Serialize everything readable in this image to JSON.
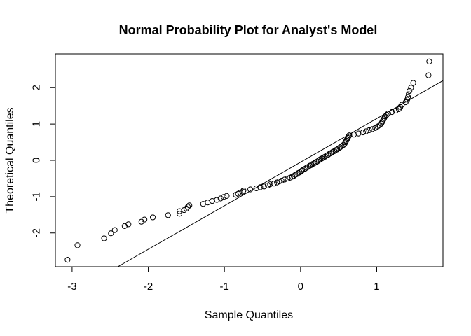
{
  "chart_data": {
    "type": "scatter",
    "title": "Normal Probability Plot for Analyst's Model",
    "xlabel": "Sample Quantiles",
    "ylabel": "Theoretical Quantiles",
    "xlim": [
      -3.22,
      1.87
    ],
    "ylim": [
      -2.93,
      2.93
    ],
    "xticks": [
      -3,
      -2,
      -1,
      0,
      1
    ],
    "xtick_labels": [
      "-3",
      "-2",
      "-1",
      "0",
      "1"
    ],
    "yticks": [
      -2,
      -1,
      0,
      1,
      2
    ],
    "ytick_labels": [
      "-2",
      "-1",
      "0",
      "1",
      "2"
    ],
    "grid": false,
    "marker": "open-circle",
    "reference_line": {
      "slope": 1.2,
      "intercept": -0.05
    },
    "points": [
      [
        -3.06,
        -2.74
      ],
      [
        -2.93,
        -2.34
      ],
      [
        -2.58,
        -2.15
      ],
      [
        -2.49,
        -2.01
      ],
      [
        -2.44,
        -1.92
      ],
      [
        -2.31,
        -1.81
      ],
      [
        -2.26,
        -1.76
      ],
      [
        -2.09,
        -1.69
      ],
      [
        -2.05,
        -1.63
      ],
      [
        -1.94,
        -1.57
      ],
      [
        -1.74,
        -1.51
      ],
      [
        -1.59,
        -1.47
      ],
      [
        -1.59,
        -1.4
      ],
      [
        -1.53,
        -1.37
      ],
      [
        -1.5,
        -1.33
      ],
      [
        -1.48,
        -1.28
      ],
      [
        -1.46,
        -1.24
      ],
      [
        -1.28,
        -1.2
      ],
      [
        -1.22,
        -1.16
      ],
      [
        -1.16,
        -1.12
      ],
      [
        -1.1,
        -1.09
      ],
      [
        -1.05,
        -1.05
      ],
      [
        -1.01,
        -1.01
      ],
      [
        -0.97,
        -0.98
      ],
      [
        -0.85,
        -0.95
      ],
      [
        -0.82,
        -0.92
      ],
      [
        -0.79,
        -0.89
      ],
      [
        -0.76,
        -0.86
      ],
      [
        -0.75,
        -0.83
      ],
      [
        -0.66,
        -0.8
      ],
      [
        -0.58,
        -0.77
      ],
      [
        -0.53,
        -0.74
      ],
      [
        -0.48,
        -0.72
      ],
      [
        -0.43,
        -0.69
      ],
      [
        -0.4,
        -0.66
      ],
      [
        -0.35,
        -0.64
      ],
      [
        -0.31,
        -0.61
      ],
      [
        -0.28,
        -0.58
      ],
      [
        -0.25,
        -0.56
      ],
      [
        -0.21,
        -0.53
      ],
      [
        -0.17,
        -0.5
      ],
      [
        -0.14,
        -0.48
      ],
      [
        -0.11,
        -0.45
      ],
      [
        -0.09,
        -0.43
      ],
      [
        -0.07,
        -0.4
      ],
      [
        -0.05,
        -0.38
      ],
      [
        -0.03,
        -0.35
      ],
      [
        -0.01,
        -0.33
      ],
      [
        0.01,
        -0.3
      ],
      [
        0.02,
        -0.28
      ],
      [
        0.04,
        -0.25
      ],
      [
        0.06,
        -0.23
      ],
      [
        0.08,
        -0.2
      ],
      [
        0.1,
        -0.18
      ],
      [
        0.12,
        -0.15
      ],
      [
        0.14,
        -0.13
      ],
      [
        0.16,
        -0.1
      ],
      [
        0.18,
        -0.08
      ],
      [
        0.2,
        -0.05
      ],
      [
        0.22,
        -0.03
      ],
      [
        0.24,
        0.0
      ],
      [
        0.26,
        0.03
      ],
      [
        0.28,
        0.05
      ],
      [
        0.3,
        0.08
      ],
      [
        0.32,
        0.1
      ],
      [
        0.34,
        0.13
      ],
      [
        0.36,
        0.15
      ],
      [
        0.38,
        0.18
      ],
      [
        0.4,
        0.2
      ],
      [
        0.42,
        0.23
      ],
      [
        0.44,
        0.25
      ],
      [
        0.46,
        0.28
      ],
      [
        0.48,
        0.3
      ],
      [
        0.5,
        0.33
      ],
      [
        0.52,
        0.36
      ],
      [
        0.54,
        0.39
      ],
      [
        0.56,
        0.42
      ],
      [
        0.58,
        0.46
      ],
      [
        0.59,
        0.5
      ],
      [
        0.6,
        0.54
      ],
      [
        0.61,
        0.58
      ],
      [
        0.62,
        0.62
      ],
      [
        0.63,
        0.66
      ],
      [
        0.64,
        0.69
      ],
      [
        0.7,
        0.71
      ],
      [
        0.76,
        0.74
      ],
      [
        0.82,
        0.77
      ],
      [
        0.86,
        0.8
      ],
      [
        0.9,
        0.83
      ],
      [
        0.94,
        0.86
      ],
      [
        0.98,
        0.89
      ],
      [
        1.01,
        0.93
      ],
      [
        1.04,
        0.97
      ],
      [
        1.06,
        1.01
      ],
      [
        1.07,
        1.05
      ],
      [
        1.08,
        1.09
      ],
      [
        1.09,
        1.13
      ],
      [
        1.1,
        1.17
      ],
      [
        1.11,
        1.21
      ],
      [
        1.13,
        1.25
      ],
      [
        1.15,
        1.29
      ],
      [
        1.2,
        1.33
      ],
      [
        1.25,
        1.37
      ],
      [
        1.29,
        1.41
      ],
      [
        1.31,
        1.47
      ],
      [
        1.33,
        1.53
      ],
      [
        1.38,
        1.6
      ],
      [
        1.4,
        1.67
      ],
      [
        1.41,
        1.74
      ],
      [
        1.42,
        1.82
      ],
      [
        1.43,
        1.91
      ],
      [
        1.45,
        2.0
      ],
      [
        1.48,
        2.13
      ],
      [
        1.68,
        2.34
      ],
      [
        1.69,
        2.72
      ]
    ]
  }
}
